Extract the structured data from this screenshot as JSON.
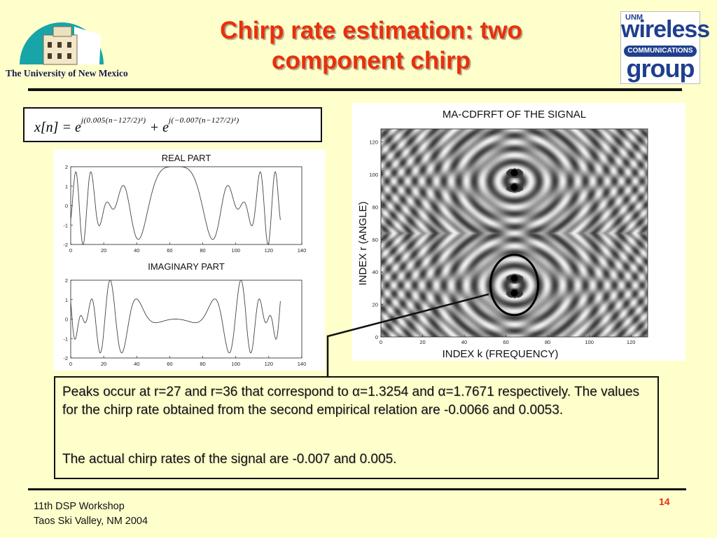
{
  "slide": {
    "title_line1": "Chirp rate estimation: two",
    "title_line2": "component chirp",
    "university_logo_text": "The University of New Mexico",
    "group_logo": {
      "line1": "wireless",
      "line2": "COMMUNICATIONS",
      "line3": "group",
      "tag": "UNM"
    },
    "equation": {
      "lhs": "x[n] = e",
      "exp1": "j(0.005(n−127/2)²)",
      "mid": "+ e",
      "exp2": "j(−0.007(n−127/2)²)"
    },
    "paragraph1": "Peaks occur at r=27 and r=36 that correspond to α=1.3254 and α=1.7671 respectively.  The values for the chirp rate obtained from the second empirical relation are -0.0066 and  0.0053.",
    "paragraph2": "The actual chirp rates of the signal are -0.007 and 0.005.",
    "footer_line1": "11th DSP Workshop",
    "footer_line2": "Taos Ski Valley, NM 2004",
    "page_number": "14",
    "colors": {
      "title": "#E8300A",
      "background": "#FFFFCC",
      "logo_blue": "#1F3F8F",
      "logo_teal": "#17A5A8"
    }
  },
  "chart_data": [
    {
      "type": "line",
      "title": "REAL PART",
      "xlim": [
        0,
        140
      ],
      "ylim": [
        -2,
        2
      ],
      "xticks": [
        0,
        20,
        40,
        60,
        80,
        100,
        120,
        140
      ],
      "yticks": [
        -2,
        -1,
        0,
        1,
        2
      ],
      "signal": {
        "n_start": 0,
        "n_end": 127,
        "chirp_rates": [
          0.005,
          -0.007
        ],
        "component": "real"
      }
    },
    {
      "type": "line",
      "title": "IMAGINARY PART",
      "xlim": [
        0,
        140
      ],
      "ylim": [
        -2,
        2
      ],
      "xticks": [
        0,
        20,
        40,
        60,
        80,
        100,
        120,
        140
      ],
      "yticks": [
        -2,
        -1,
        0,
        1,
        2
      ],
      "signal": {
        "n_start": 0,
        "n_end": 127,
        "chirp_rates": [
          0.005,
          -0.007
        ],
        "component": "imag"
      }
    },
    {
      "type": "heatmap",
      "title": "MA-CDFRFT OF THE SIGNAL",
      "xlabel": "INDEX k (FREQUENCY)",
      "ylabel": "INDEX r (ANGLE)",
      "xlim": [
        0,
        128
      ],
      "ylim": [
        0,
        128
      ],
      "xticks": [
        0,
        20,
        40,
        60,
        80,
        100,
        120
      ],
      "yticks": [
        0,
        20,
        40,
        60,
        80,
        100,
        120
      ],
      "peaks": [
        {
          "k": 64,
          "r": 27
        },
        {
          "k": 64,
          "r": 36
        },
        {
          "k": 64,
          "r": 92
        },
        {
          "k": 64,
          "r": 101
        }
      ],
      "highlight": {
        "k": 64,
        "r": 32
      }
    }
  ]
}
